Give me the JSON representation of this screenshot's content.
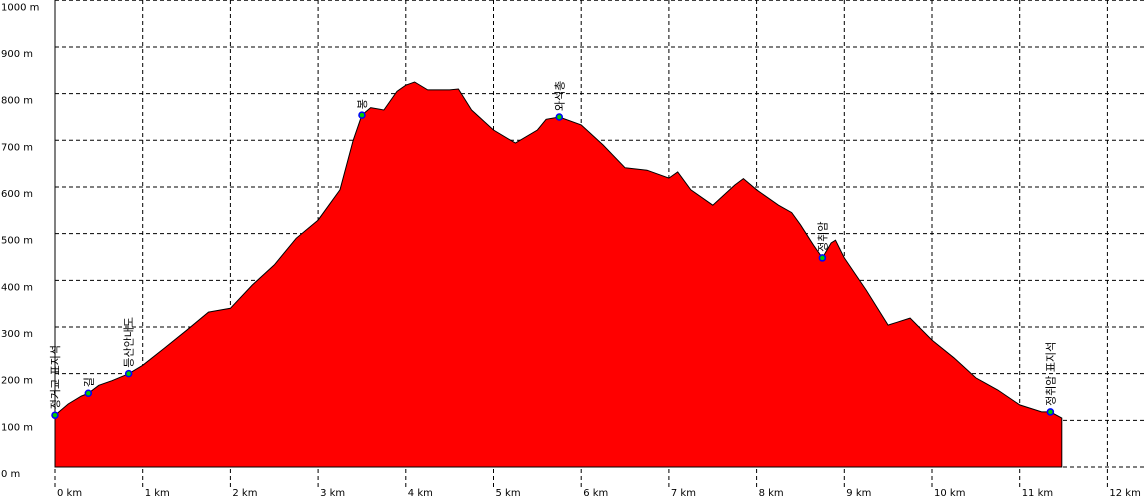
{
  "chart_data": {
    "type": "area",
    "title": "",
    "xlabel": "",
    "ylabel": "",
    "xlim": [
      0,
      12.5
    ],
    "ylim": [
      0,
      1000
    ],
    "grid": true,
    "x_ticks": [
      "0 km",
      "1 km",
      "2 km",
      "3 km",
      "4 km",
      "5 km",
      "6 km",
      "7 km",
      "8 km",
      "9 km",
      "10 km",
      "11 km",
      "12 km"
    ],
    "y_ticks": [
      "0 m",
      "100 m",
      "200 m",
      "300 m",
      "400 m",
      "500 m",
      "600 m",
      "700 m",
      "800 m",
      "900 m",
      "1000 m"
    ],
    "fill_color": "#ff0000",
    "marker_color": "#0000ff",
    "series": [
      {
        "x": [
          0,
          0.15,
          0.3,
          0.38,
          0.5,
          0.65,
          0.84,
          1.0,
          1.25,
          1.5,
          1.75,
          2.0,
          2.25,
          2.5,
          2.75,
          3.0,
          3.25,
          3.4,
          3.5,
          3.6,
          3.75,
          3.9,
          4.0,
          4.1,
          4.25,
          4.5,
          4.6,
          4.75,
          5.0,
          5.25,
          5.5,
          5.6,
          5.75,
          6.0,
          6.25,
          6.5,
          6.75,
          7.0,
          7.1,
          7.25,
          7.5,
          7.75,
          7.85,
          8.0,
          8.25,
          8.4,
          8.5,
          8.65,
          8.75,
          8.85,
          8.9,
          9.0,
          9.25,
          9.5,
          9.6,
          9.75,
          10.0,
          10.25,
          10.5,
          10.75,
          11.0,
          11.25,
          11.35,
          11.48
        ],
        "y": [
          111,
          135,
          152,
          158,
          175,
          185,
          200,
          218,
          255,
          293,
          332,
          340,
          390,
          433,
          490,
          529,
          594,
          700,
          754,
          770,
          765,
          805,
          818,
          825,
          808,
          808,
          810,
          765,
          722,
          694,
          722,
          745,
          750,
          733,
          690,
          641,
          636,
          619,
          632,
          594,
          561,
          604,
          618,
          594,
          561,
          545,
          519,
          475,
          448,
          480,
          486,
          448,
          379,
          304,
          310,
          319,
          272,
          234,
          191,
          165,
          133,
          118,
          118,
          105
        ]
      }
    ],
    "waypoints": [
      {
        "name": "정거교 표지석",
        "x": 0.0,
        "y": 111
      },
      {
        "name": "길",
        "x": 0.38,
        "y": 158
      },
      {
        "name": "등산안내도",
        "x": 0.84,
        "y": 200
      },
      {
        "name": "봉",
        "x": 3.5,
        "y": 754
      },
      {
        "name": "와석총",
        "x": 5.75,
        "y": 750
      },
      {
        "name": "정취암",
        "x": 8.75,
        "y": 448
      },
      {
        "name": "정취암 표지석",
        "x": 11.35,
        "y": 118
      }
    ]
  }
}
